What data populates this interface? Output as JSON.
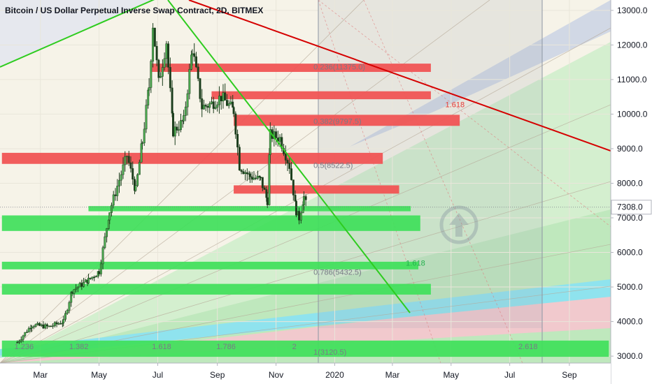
{
  "chart_data": {
    "type": "candlestick",
    "title": "Bitcoin / US Dollar Perpetual Inverse Swap Contract, 2D, BITMEX",
    "ylim": [
      2800,
      13300
    ],
    "y_ticks": [
      3000,
      4000,
      5000,
      6000,
      7000,
      8000,
      9000,
      10000,
      11000,
      12000,
      13000
    ],
    "y_tick_labels": [
      "3000.0",
      "4000.0",
      "5000.0",
      "6000.0",
      "7000.0",
      "8000.0",
      "9000.0",
      "10000.0",
      "11000.0",
      "12000.0",
      "13000.0"
    ],
    "x_ticks": [
      "2019-03-01",
      "2019-05-01",
      "2019-07-01",
      "2019-09-01",
      "2019-11-01",
      "2020-01-01",
      "2020-03-01",
      "2020-05-01",
      "2020-07-01",
      "2020-09-01"
    ],
    "x_tick_labels": [
      "Mar",
      "May",
      "Jul",
      "Sep",
      "Nov",
      "2020",
      "Mar",
      "May",
      "Jul",
      "Sep"
    ],
    "last_price": {
      "value": 7308.0,
      "label": "7308.0",
      "color": "#787b86"
    },
    "price_path": [
      [
        "2019-02-05",
        3400
      ],
      [
        "2019-02-20",
        3900
      ],
      [
        "2019-03-10",
        3850
      ],
      [
        "2019-03-25",
        4000
      ],
      [
        "2019-04-03",
        4900
      ],
      [
        "2019-04-20",
        5200
      ],
      [
        "2019-05-01",
        5450
      ],
      [
        "2019-05-12",
        7200
      ],
      [
        "2019-05-22",
        8100
      ],
      [
        "2019-05-30",
        8800
      ],
      [
        "2019-06-08",
        7800
      ],
      [
        "2019-06-15",
        9200
      ],
      [
        "2019-06-22",
        10800
      ],
      [
        "2019-06-26",
        12600
      ],
      [
        "2019-07-02",
        10900
      ],
      [
        "2019-07-10",
        12100
      ],
      [
        "2019-07-17",
        9500
      ],
      [
        "2019-07-28",
        9800
      ],
      [
        "2019-08-06",
        11900
      ],
      [
        "2019-08-16",
        10200
      ],
      [
        "2019-08-26",
        10300
      ],
      [
        "2019-09-05",
        10500
      ],
      [
        "2019-09-18",
        10100
      ],
      [
        "2019-09-24",
        8500
      ],
      [
        "2019-10-05",
        8200
      ],
      [
        "2019-10-16",
        8100
      ],
      [
        "2019-10-23",
        7500
      ],
      [
        "2019-10-26",
        9400
      ],
      [
        "2019-11-05",
        9300
      ],
      [
        "2019-11-15",
        8500
      ],
      [
        "2019-11-22",
        7200
      ],
      [
        "2019-11-25",
        7000
      ],
      [
        "2019-11-30",
        7600
      ],
      [
        "2019-12-03",
        7308
      ]
    ],
    "fib_levels": [
      {
        "ratio": "0.236",
        "price": 11375.0,
        "label": "0.236(11375.0)"
      },
      {
        "ratio": "0.382",
        "price": 9797.5,
        "label": "0.382(9797.5)"
      },
      {
        "ratio": "0.5",
        "price": 8522.5,
        "label": "0.5(8522.5)"
      },
      {
        "ratio": "0.786",
        "price": 5432.5,
        "label": "0.786(5432.5)"
      },
      {
        "ratio": "1",
        "price": 3120.5,
        "label": "1(3120.5)"
      }
    ],
    "fib_time_labels": [
      {
        "date": "2019-02-12",
        "label": "1.236"
      },
      {
        "date": "2019-04-10",
        "label": "1.382"
      },
      {
        "date": "2019-07-05",
        "label": "1.618"
      },
      {
        "date": "2019-09-10",
        "label": "1.786"
      },
      {
        "date": "2019-11-20",
        "label": "2"
      },
      {
        "date": "2020-07-20",
        "label": "2.618"
      }
    ],
    "extension_labels": [
      {
        "date": "2020-04-25",
        "price": 10200,
        "label": "1.618",
        "color": "#e53935"
      },
      {
        "date": "2020-03-15",
        "price": 5620,
        "label": "1.618",
        "color": "#22b14c"
      }
    ],
    "resistance_zones": [
      {
        "start": "2019-06-25",
        "end": "2020-04-10",
        "low": 11220,
        "high": 11460
      },
      {
        "start": "2019-08-26",
        "end": "2020-04-10",
        "low": 10430,
        "high": 10660
      },
      {
        "start": "2019-09-18",
        "end": "2020-05-10",
        "low": 9660,
        "high": 9980
      },
      {
        "start": "2019-01-20",
        "end": "2020-02-20",
        "low": 8560,
        "high": 8880
      },
      {
        "start": "2019-09-18",
        "end": "2020-03-08",
        "low": 7700,
        "high": 7940
      }
    ],
    "support_zones": [
      {
        "start": "2019-04-20",
        "end": "2020-03-20",
        "low": 7190,
        "high": 7340
      },
      {
        "start": "2019-01-20",
        "end": "2020-03-30",
        "low": 6620,
        "high": 7070
      },
      {
        "start": "2019-01-20",
        "end": "2020-03-28",
        "low": 5510,
        "high": 5730
      },
      {
        "start": "2019-01-20",
        "end": "2020-04-10",
        "low": 4780,
        "high": 5090
      },
      {
        "start": "2019-01-20",
        "end": "2020-10-12",
        "low": 2980,
        "high": 3450
      }
    ],
    "colors": {
      "resistance": "#f05454",
      "support": "#3fe05a",
      "up_candle": "#26a69a",
      "down_candle": "#ef5350",
      "candle_body": "#2e7d32",
      "red_trendline": "#d50000",
      "green_trendline": "#2ecc1f"
    }
  }
}
